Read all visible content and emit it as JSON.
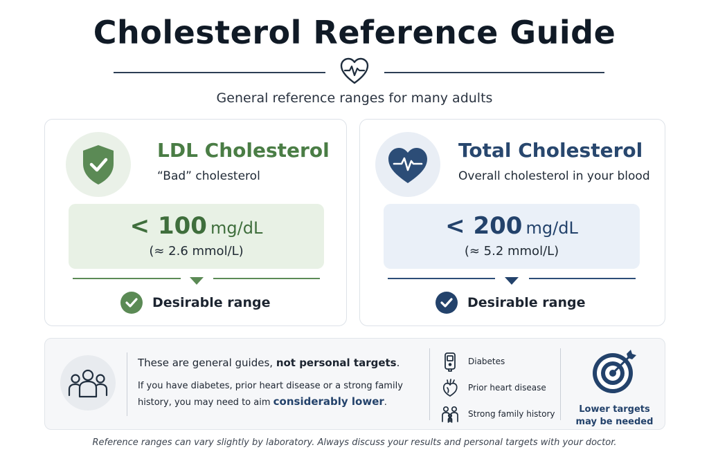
{
  "title": "Cholesterol Reference Guide",
  "subtitle": "General reference ranges for many adults",
  "colors": {
    "ldl_green": "#4a7d45",
    "total_navy": "#28476e",
    "ldl_panel": "#e8f1e5",
    "total_panel": "#eaf0f8"
  },
  "cards": {
    "ldl": {
      "icon": "shield-check-icon",
      "title": "LDL Cholesterol",
      "subtitle": "“Bad” cholesterol",
      "value": "< 100",
      "unit": "mg/dL",
      "alt": "(≈ 2.6 mmol/L)",
      "status": "Desirable range"
    },
    "total": {
      "icon": "heart-pulse-icon",
      "title": "Total Cholesterol",
      "subtitle": "Overall cholesterol in your blood",
      "value": "< 200",
      "unit": "mg/dL",
      "alt": "(≈ 5.2 mmol/L)",
      "status": "Desirable range"
    }
  },
  "note": {
    "icon": "people-group-icon",
    "line1_prefix": "These are general guides, ",
    "line1_bold": "not personal targets",
    "line1_suffix": ".",
    "line2": "If you have diabetes, prior heart disease or a strong family history, you may need to aim ",
    "line2_emphasis": "considerably lower",
    "line2_suffix": ".",
    "risks": [
      {
        "icon": "glucose-meter-icon",
        "label": "Diabetes"
      },
      {
        "icon": "anatomical-heart-icon",
        "label": "Prior heart disease"
      },
      {
        "icon": "family-icon",
        "label": "Strong family history"
      }
    ],
    "target_icon": "target-arrow-icon",
    "target_line1": "Lower targets",
    "target_line2": "may be needed"
  },
  "footer": "Reference ranges can vary slightly by laboratory. Always discuss your results and personal targets with your doctor."
}
